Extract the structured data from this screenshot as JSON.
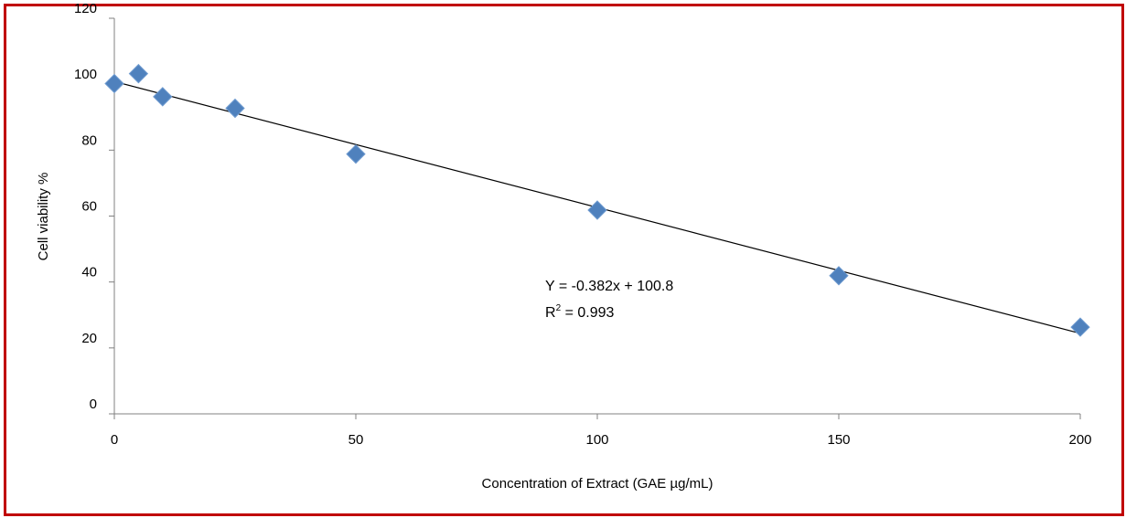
{
  "colors": {
    "border": "#c00000",
    "marker": "#4f81bd",
    "trendline": "#000000",
    "axis": "#808080"
  },
  "chart_data": {
    "type": "scatter",
    "title": "",
    "xlabel": "Concentration of Extract (GAE µg/mL)",
    "ylabel": "Cell viability %",
    "xlim": [
      0,
      200
    ],
    "ylim": [
      0,
      120
    ],
    "x_ticks": [
      0,
      50,
      100,
      150,
      200
    ],
    "y_ticks": [
      0,
      20,
      40,
      60,
      80,
      100,
      120
    ],
    "x_tick_labels": [
      "0",
      "50",
      "100",
      "150",
      "200"
    ],
    "y_tick_labels": [
      "0",
      "20",
      "40",
      "60",
      "80",
      "100",
      "120"
    ],
    "grid": false,
    "legend": "none",
    "series": [
      {
        "x": [
          0,
          5,
          10,
          25,
          50,
          100,
          150,
          200
        ],
        "y": [
          100.2,
          103.2,
          96.2,
          92.7,
          78.8,
          61.8,
          41.9,
          26.3
        ],
        "marker": "diamond"
      }
    ],
    "trendline": {
      "type": "linear",
      "slope": -0.382,
      "intercept": 100.8,
      "x_range": [
        0,
        200
      ]
    },
    "annotations": {
      "equation": "Y = -0.382x + 100.8",
      "r2_prefix": "R",
      "r2_sup": "2",
      "r2_value": " = 0.993"
    }
  }
}
